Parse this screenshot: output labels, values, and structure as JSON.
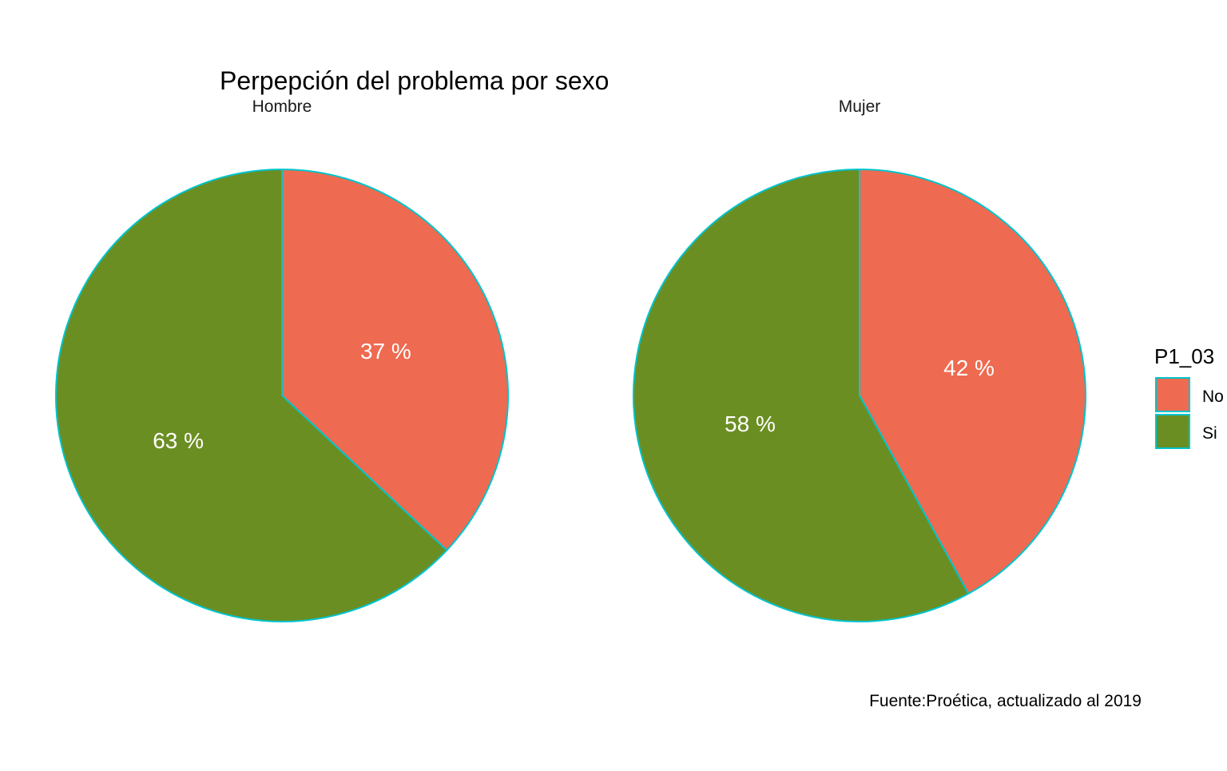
{
  "chart_data": {
    "type": "pie",
    "title": "Perpepción del problema por sexo",
    "caption": "Fuente:Proética, actualizado al 2019",
    "legend": {
      "title": "P1_03",
      "position": "right",
      "entries": [
        {
          "label": "No",
          "color": "#EE6A50"
        },
        {
          "label": "Si",
          "color": "#6B8E23"
        }
      ]
    },
    "slice_border_color": "#00C5CD",
    "label_color": "#ffffff",
    "categories": [
      "No",
      "Si"
    ],
    "panels": [
      {
        "facet": "Hombre",
        "values": [
          37,
          63
        ],
        "labels": [
          "37 %",
          "63 %"
        ]
      },
      {
        "facet": "Mujer",
        "values": [
          42,
          58
        ],
        "labels": [
          "42 %",
          "58 %"
        ]
      }
    ]
  }
}
